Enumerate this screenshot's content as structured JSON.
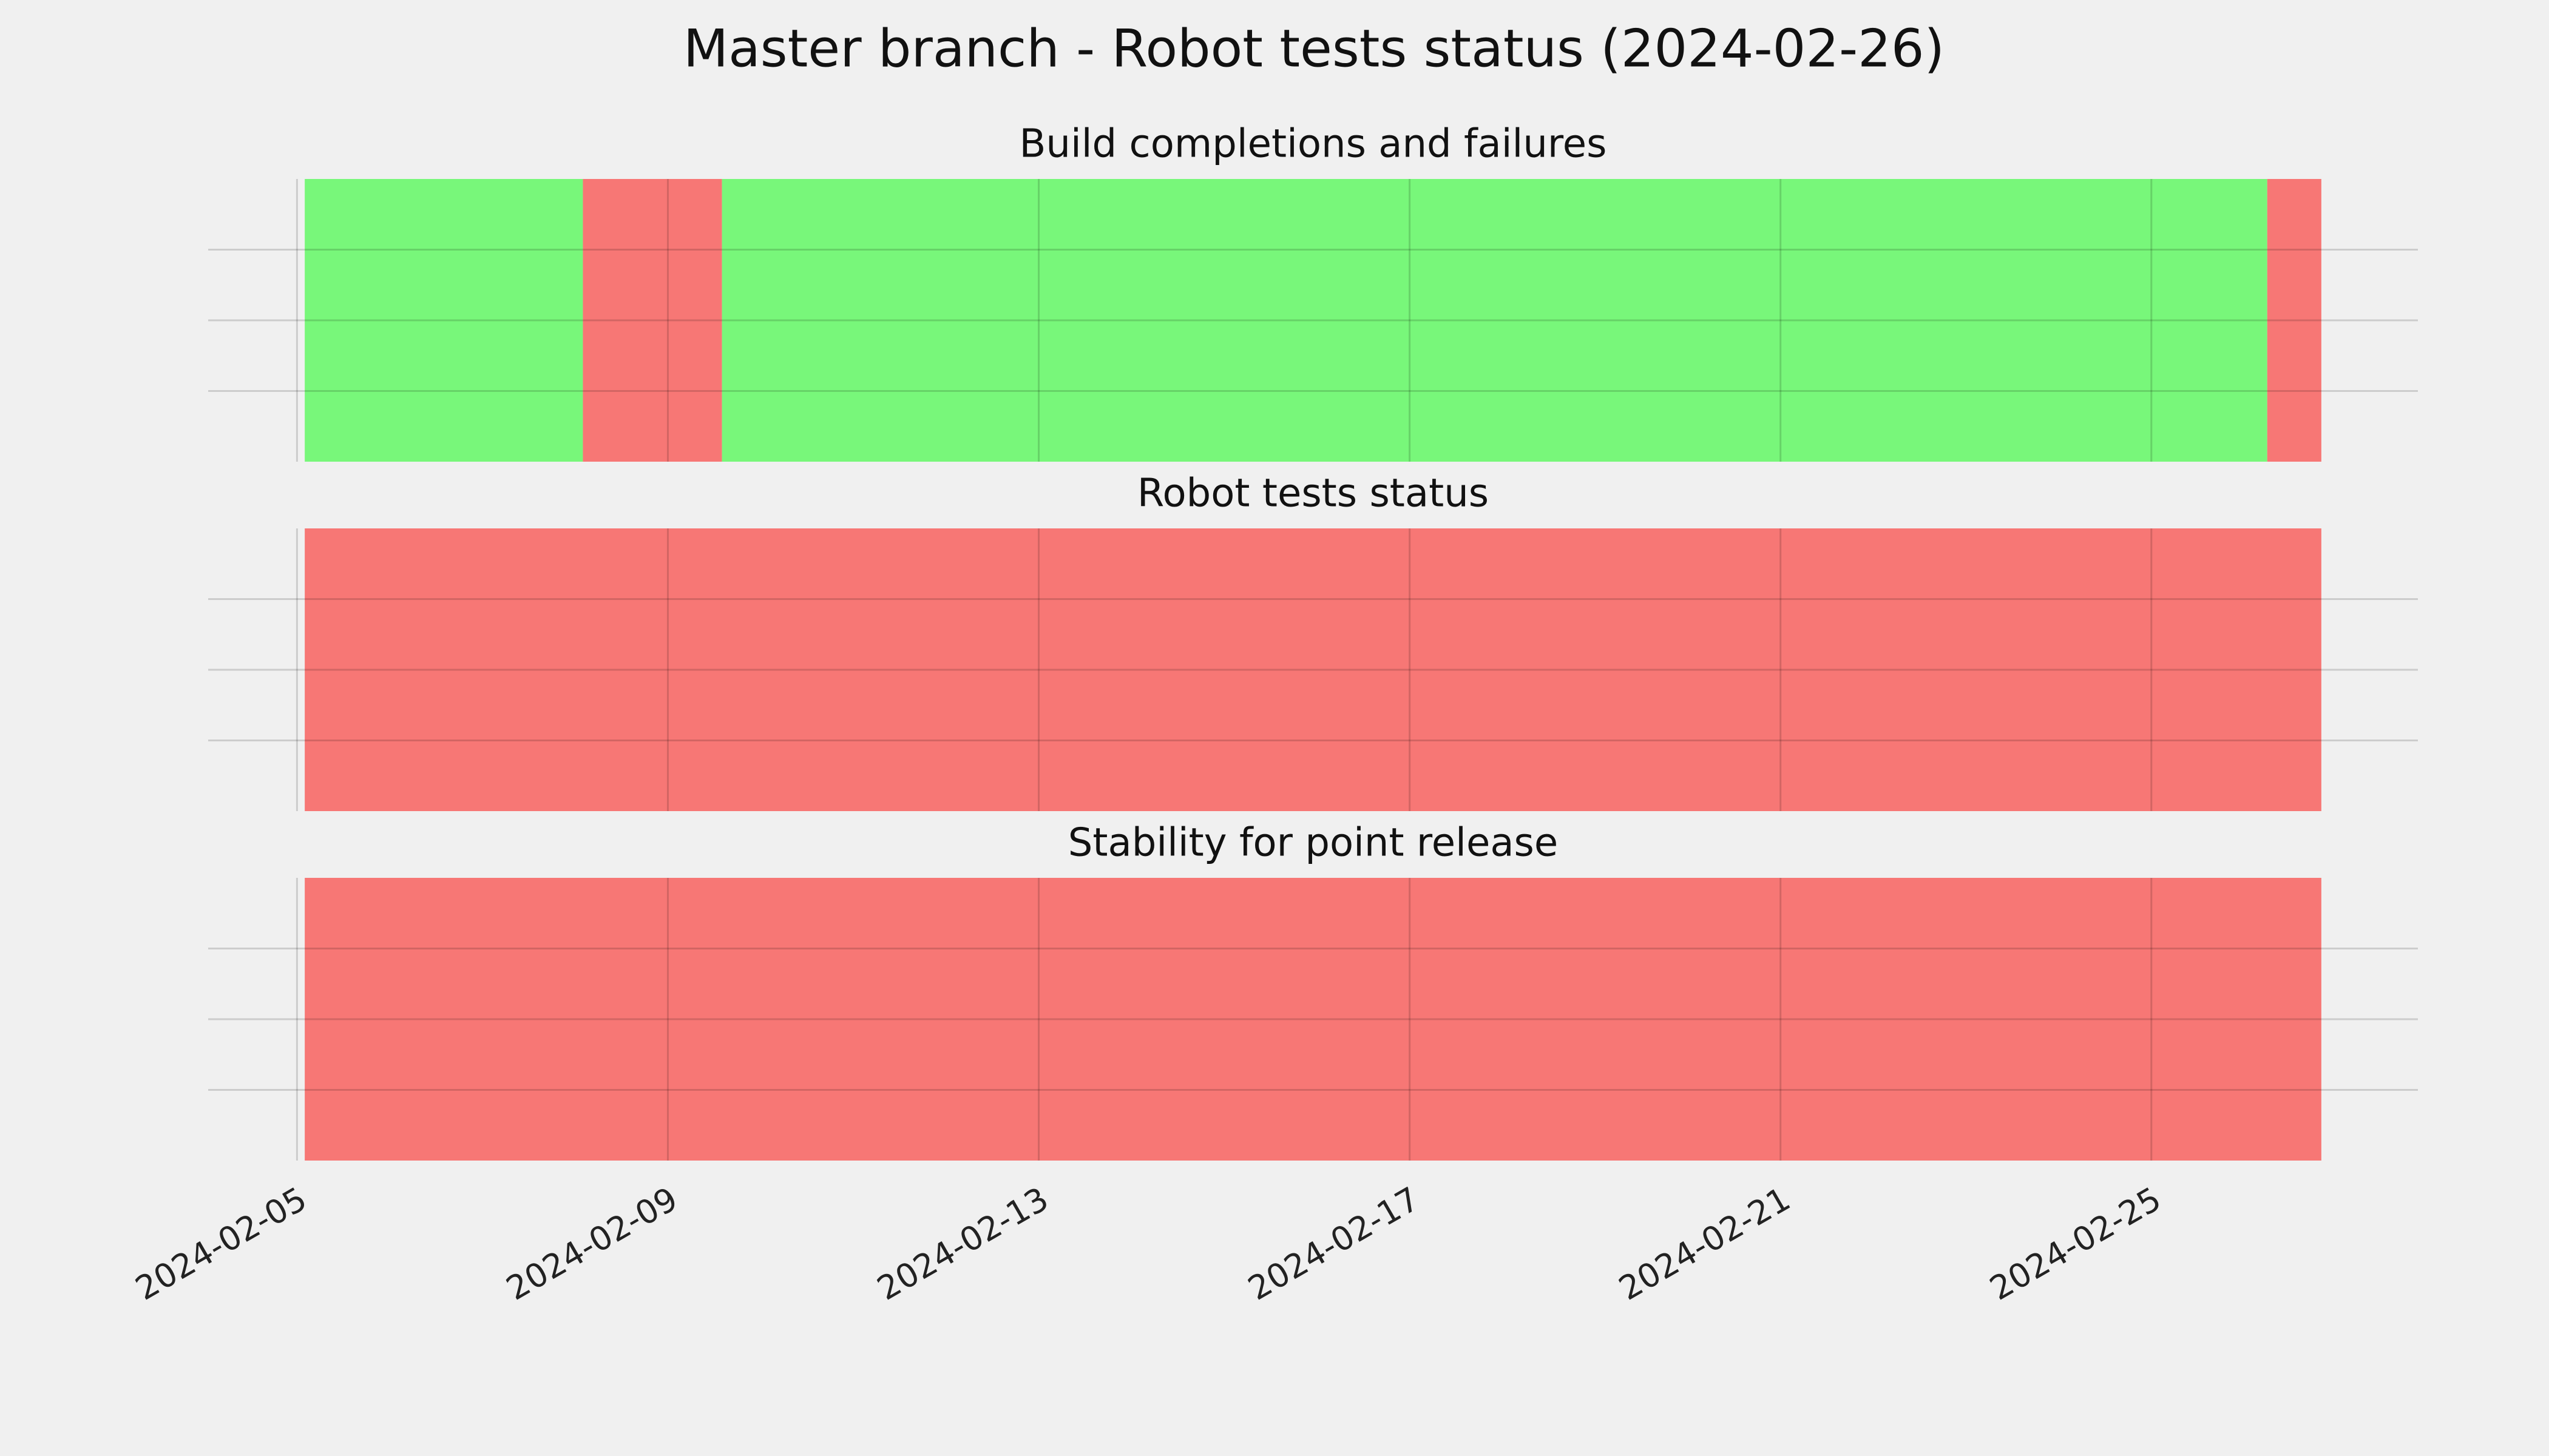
{
  "title": "Master branch - Robot tests status (2024-02-26)",
  "chart_data": [
    {
      "type": "timeline",
      "title": "Build completions and failures",
      "xlim": [
        "2024-02-04T01:00Z",
        "2024-02-27T21:00Z"
      ],
      "xticks": [
        "2024-02-05",
        "2024-02-09",
        "2024-02-13",
        "2024-02-17",
        "2024-02-21",
        "2024-02-25"
      ],
      "ylim": [
        0,
        1
      ],
      "yticks": [
        0.25,
        0.5,
        0.75
      ],
      "grid": true,
      "show_xtick_labels": false,
      "spans": [
        {
          "start": "2024-02-05T02:00Z",
          "end": "2024-02-08T02:00Z",
          "color": "#78f77a"
        },
        {
          "start": "2024-02-08T02:00Z",
          "end": "2024-02-09T14:00Z",
          "color": "#f77775"
        },
        {
          "start": "2024-02-09T14:00Z",
          "end": "2024-02-26T06:00Z",
          "color": "#78f77a"
        },
        {
          "start": "2024-02-26T06:00Z",
          "end": "2024-02-26T20:00Z",
          "color": "#f77775"
        }
      ]
    },
    {
      "type": "timeline",
      "title": "Robot tests status",
      "xlim": [
        "2024-02-04T01:00Z",
        "2024-02-27T21:00Z"
      ],
      "xticks": [
        "2024-02-05",
        "2024-02-09",
        "2024-02-13",
        "2024-02-17",
        "2024-02-21",
        "2024-02-25"
      ],
      "ylim": [
        0,
        1
      ],
      "yticks": [
        0.25,
        0.5,
        0.75
      ],
      "grid": true,
      "show_xtick_labels": false,
      "spans": [
        {
          "start": "2024-02-05T02:00Z",
          "end": "2024-02-26T20:00Z",
          "color": "#f77775"
        }
      ]
    },
    {
      "type": "timeline",
      "title": "Stability for point release",
      "xlim": [
        "2024-02-04T01:00Z",
        "2024-02-27T21:00Z"
      ],
      "xticks": [
        "2024-02-05",
        "2024-02-09",
        "2024-02-13",
        "2024-02-17",
        "2024-02-21",
        "2024-02-25"
      ],
      "ylim": [
        0,
        1
      ],
      "yticks": [
        0.25,
        0.5,
        0.75
      ],
      "grid": true,
      "show_xtick_labels": true,
      "spans": [
        {
          "start": "2024-02-05T02:00Z",
          "end": "2024-02-26T20:00Z",
          "color": "#f77775"
        }
      ]
    }
  ]
}
